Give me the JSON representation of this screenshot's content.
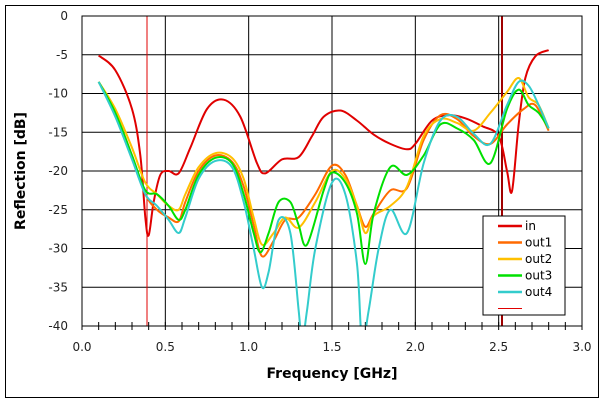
{
  "chart_data": {
    "type": "line",
    "title": "",
    "xlabel": "Frequency [GHz]",
    "ylabel": "Reflection [dB]",
    "xlim": [
      0.0,
      3.0
    ],
    "ylim": [
      -40,
      0
    ],
    "xticks": [
      "0.0",
      "0.5",
      "1.0",
      "1.5",
      "2.0",
      "2.5",
      "3.0"
    ],
    "yticks": [
      "0",
      "-5",
      "-10",
      "-15",
      "-20",
      "-25",
      "-30",
      "-35",
      "-40"
    ],
    "grid": true,
    "legend_position": "inside-bottom-right",
    "vlines": [
      {
        "x": 0.39,
        "color": "#e00000",
        "width": 1
      },
      {
        "x": 2.52,
        "color": "#a00000",
        "width": 2
      }
    ],
    "series": [
      {
        "name": "in",
        "color": "#e00000",
        "x": [
          0.1,
          0.2,
          0.3,
          0.35,
          0.38,
          0.4,
          0.43,
          0.47,
          0.52,
          0.58,
          0.65,
          0.75,
          0.85,
          0.95,
          1.05,
          1.1,
          1.2,
          1.3,
          1.38,
          1.45,
          1.55,
          1.65,
          1.75,
          1.85,
          1.95,
          2.0,
          2.1,
          2.2,
          2.3,
          2.4,
          2.5,
          2.55,
          2.58,
          2.62,
          2.66,
          2.72,
          2.8
        ],
        "y": [
          -5.1,
          -7,
          -12,
          -18,
          -26,
          -28.3,
          -24,
          -20.5,
          -20,
          -20.3,
          -17,
          -12,
          -10.8,
          -13,
          -19,
          -20.3,
          -18.5,
          -18.2,
          -15.5,
          -13,
          -12.2,
          -13.5,
          -15.3,
          -16.5,
          -17.2,
          -16.5,
          -13.5,
          -12.8,
          -13.2,
          -14.2,
          -15.5,
          -20,
          -22.6,
          -14,
          -8,
          -5.2,
          -4.4
        ]
      },
      {
        "name": "out1",
        "color": "#ff6a00",
        "x": [
          0.1,
          0.2,
          0.3,
          0.38,
          0.45,
          0.52,
          0.58,
          0.62,
          0.7,
          0.8,
          0.9,
          0.97,
          1.03,
          1.08,
          1.15,
          1.22,
          1.3,
          1.4,
          1.5,
          1.58,
          1.65,
          1.7,
          1.75,
          1.85,
          1.95,
          2.05,
          2.15,
          2.25,
          2.35,
          2.45,
          2.55,
          2.65,
          2.72,
          2.8
        ],
        "y": [
          -8.5,
          -12.5,
          -18,
          -23,
          -25,
          -26,
          -26.5,
          -24,
          -20,
          -18,
          -18.8,
          -22,
          -27,
          -31,
          -29,
          -26.3,
          -26,
          -23,
          -19.3,
          -20.5,
          -24.5,
          -27.2,
          -25.5,
          -22.5,
          -22.2,
          -16,
          -12.8,
          -13.3,
          -15.5,
          -16.5,
          -14,
          -12,
          -11.5,
          -14.8
        ]
      },
      {
        "name": "out2",
        "color": "#ffc000",
        "x": [
          0.1,
          0.2,
          0.3,
          0.38,
          0.45,
          0.52,
          0.58,
          0.62,
          0.7,
          0.8,
          0.9,
          0.97,
          1.03,
          1.08,
          1.15,
          1.22,
          1.3,
          1.4,
          1.5,
          1.58,
          1.65,
          1.7,
          1.75,
          1.85,
          1.95,
          2.05,
          2.15,
          2.25,
          2.35,
          2.45,
          2.55,
          2.62,
          2.68,
          2.74,
          2.8
        ],
        "y": [
          -8.5,
          -12,
          -17,
          -21.5,
          -23,
          -24.5,
          -25,
          -23,
          -19.5,
          -17.7,
          -18.3,
          -21,
          -26,
          -29.5,
          -28,
          -26,
          -27.3,
          -24,
          -20,
          -21,
          -24.5,
          -28,
          -25.8,
          -24.5,
          -22,
          -15.5,
          -13.3,
          -13.8,
          -14.8,
          -12.5,
          -9.8,
          -8,
          -10.5,
          -11.5,
          -14.5
        ]
      },
      {
        "name": "out3",
        "color": "#00e000",
        "x": [
          0.1,
          0.2,
          0.3,
          0.38,
          0.45,
          0.52,
          0.58,
          0.62,
          0.7,
          0.8,
          0.9,
          0.97,
          1.03,
          1.07,
          1.12,
          1.18,
          1.25,
          1.3,
          1.35,
          1.45,
          1.5,
          1.58,
          1.65,
          1.7,
          1.75,
          1.85,
          1.95,
          2.05,
          2.15,
          2.25,
          2.35,
          2.45,
          2.55,
          2.62,
          2.68,
          2.74,
          2.8
        ],
        "y": [
          -8.5,
          -12.5,
          -18,
          -22.5,
          -23,
          -24.5,
          -26.3,
          -25,
          -20.5,
          -18.3,
          -19,
          -23,
          -28,
          -30.5,
          -28,
          -24,
          -24,
          -27,
          -29.5,
          -22.5,
          -20.2,
          -21.5,
          -25.5,
          -32,
          -25.5,
          -19.5,
          -20.5,
          -18,
          -14,
          -14.5,
          -16,
          -19,
          -12,
          -9.5,
          -11.5,
          -12.5,
          -14.5
        ]
      },
      {
        "name": "out4",
        "color": "#33cccc",
        "x": [
          0.1,
          0.2,
          0.3,
          0.38,
          0.45,
          0.52,
          0.58,
          0.62,
          0.7,
          0.8,
          0.9,
          0.97,
          1.03,
          1.08,
          1.12,
          1.18,
          1.25,
          1.3,
          1.32,
          1.35,
          1.4,
          1.5,
          1.58,
          1.65,
          1.68,
          1.72,
          1.78,
          1.85,
          1.95,
          2.05,
          2.15,
          2.25,
          2.35,
          2.45,
          2.55,
          2.62,
          2.68,
          2.74,
          2.8
        ],
        "y": [
          -8.5,
          -13,
          -18.5,
          -23,
          -24.5,
          -26.3,
          -28,
          -26,
          -21,
          -18.7,
          -19.5,
          -24,
          -30,
          -35,
          -33,
          -26.3,
          -28,
          -38,
          -42,
          -38,
          -30,
          -21.5,
          -23,
          -32,
          -42,
          -38,
          -30,
          -25,
          -28,
          -19,
          -13.5,
          -13,
          -15.2,
          -16.5,
          -11.5,
          -8.5,
          -9,
          -11.5,
          -14.5
        ]
      },
      {
        "name": "",
        "color": "#e00000",
        "x": [],
        "y": []
      }
    ]
  },
  "legend": {
    "items": [
      {
        "label": "in",
        "color": "#e00000",
        "width": 2.5
      },
      {
        "label": "out1",
        "color": "#ff6a00",
        "width": 2.5
      },
      {
        "label": "out2",
        "color": "#ffc000",
        "width": 2.5
      },
      {
        "label": "out3",
        "color": "#00e000",
        "width": 2.5
      },
      {
        "label": "out4",
        "color": "#33cccc",
        "width": 2.5
      },
      {
        "label": "",
        "color": "#e00000",
        "width": 1
      }
    ]
  }
}
